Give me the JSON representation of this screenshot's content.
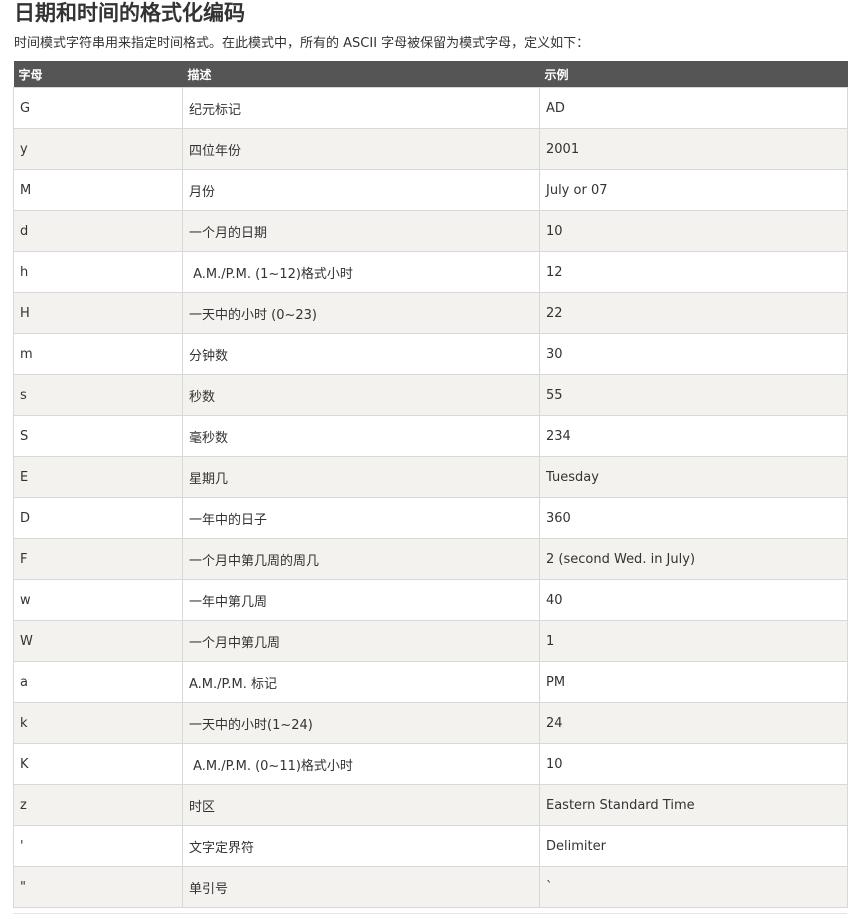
{
  "title": "日期和时间的格式化编码",
  "intro": "时间模式字符串用来指定时间格式。在此模式中，所有的 ASCII 字母被保留为模式字母，定义如下：",
  "table": {
    "headers": [
      "字母",
      "描述",
      "示例"
    ],
    "rows": [
      {
        "letter": "G",
        "desc": "纪元标记",
        "example": "AD"
      },
      {
        "letter": "y",
        "desc": "四位年份",
        "example": "2001"
      },
      {
        "letter": "M",
        "desc": "月份",
        "example": "July or 07"
      },
      {
        "letter": "d",
        "desc": "一个月的日期",
        "example": "10"
      },
      {
        "letter": "h",
        "desc": " A.M./P.M. (1~12)格式小时",
        "example": "12"
      },
      {
        "letter": "H",
        "desc": "一天中的小时 (0~23)",
        "example": "22"
      },
      {
        "letter": "m",
        "desc": "分钟数",
        "example": "30"
      },
      {
        "letter": "s",
        "desc": "秒数",
        "example": "55"
      },
      {
        "letter": "S",
        "desc": "毫秒数",
        "example": "234"
      },
      {
        "letter": "E",
        "desc": "星期几",
        "example": "Tuesday"
      },
      {
        "letter": "D",
        "desc": "一年中的日子",
        "example": "360"
      },
      {
        "letter": "F",
        "desc": "一个月中第几周的周几",
        "example": "2 (second Wed. in July)"
      },
      {
        "letter": "w",
        "desc": "一年中第几周",
        "example": "40"
      },
      {
        "letter": "W",
        "desc": "一个月中第几周",
        "example": "1"
      },
      {
        "letter": "a",
        "desc": "A.M./P.M. 标记",
        "example": "PM"
      },
      {
        "letter": "k",
        "desc": "一天中的小时(1~24)",
        "example": "24"
      },
      {
        "letter": "K",
        "desc": " A.M./P.M. (0~11)格式小时",
        "example": "10"
      },
      {
        "letter": "z",
        "desc": "时区",
        "example": "Eastern Standard Time"
      },
      {
        "letter": "'",
        "desc": "文字定界符",
        "example": "Delimiter"
      },
      {
        "letter": "\"",
        "desc": "单引号",
        "example": "`"
      }
    ]
  }
}
